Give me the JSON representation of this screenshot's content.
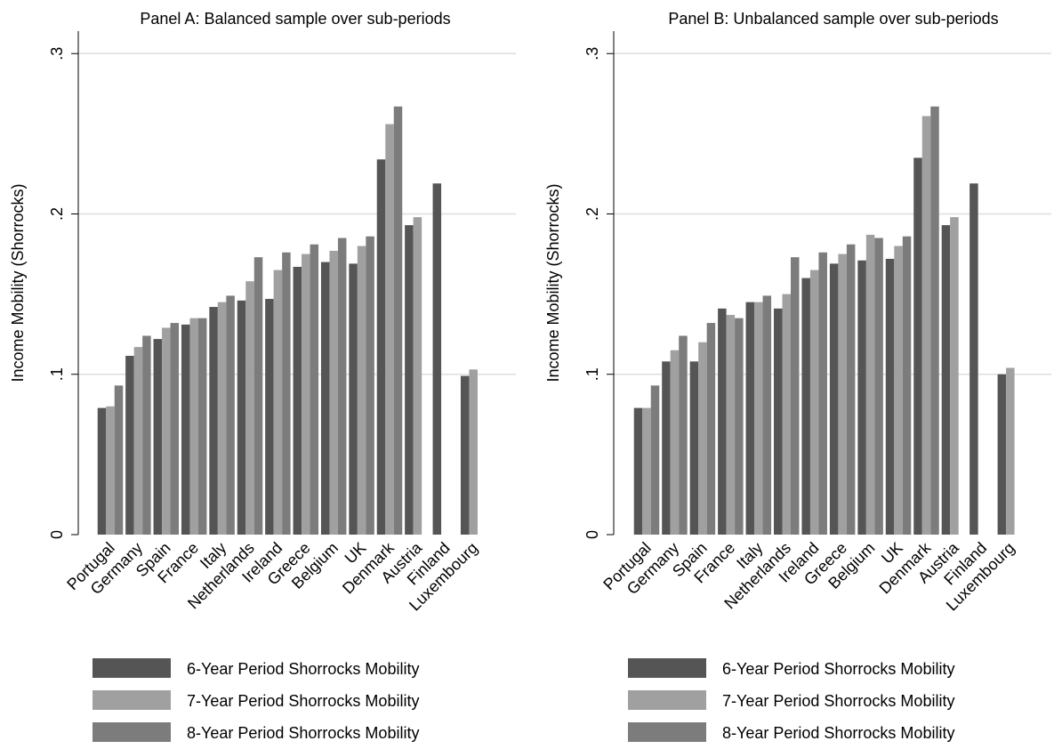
{
  "chart_data": [
    {
      "type": "bar",
      "title": "Panel A: Balanced sample over sub-periods",
      "y_label": "Income Mobility (Shorrocks)",
      "categories": [
        "Portugal",
        "Germany",
        "Spain",
        "France",
        "Italy",
        "Netherlands",
        "Ireland",
        "Greece",
        "Belgium",
        "UK",
        "Denmark",
        "Austria",
        "Finland",
        "Luxembourg"
      ],
      "series": [
        {
          "name": "6-Year Period Shorrocks Mobility",
          "color": "#555555",
          "values": [
            0.079,
            0.1115,
            0.122,
            0.131,
            0.142,
            0.146,
            0.147,
            0.167,
            0.17,
            0.169,
            0.234,
            0.193,
            0.219,
            0.099
          ]
        },
        {
          "name": "7-Year Period Shorrocks Mobility",
          "color": "#a0a0a0",
          "values": [
            0.08,
            0.117,
            0.129,
            0.135,
            0.145,
            0.158,
            0.165,
            0.175,
            0.177,
            0.18,
            0.256,
            0.198,
            null,
            0.103
          ]
        },
        {
          "name": "8-Year Period Shorrocks Mobility",
          "color": "#7c7c7c",
          "values": [
            0.093,
            0.124,
            0.132,
            0.135,
            0.149,
            0.173,
            0.176,
            0.181,
            0.185,
            0.186,
            0.267,
            null,
            null,
            null
          ]
        }
      ],
      "ylim": [
        0,
        0.314
      ],
      "yticks": [
        0,
        {
          "value": 0.1,
          "label": ".1"
        },
        {
          "value": 0.2,
          "label": ".2"
        },
        {
          "value": 0.3,
          "label": ".3"
        }
      ],
      "grid": true
    },
    {
      "type": "bar",
      "title": "Panel B: Unbalanced sample over sub-periods",
      "y_label": "Income Mobility (Shorrocks)",
      "categories": [
        "Portugal",
        "Germany",
        "Spain",
        "France",
        "Italy",
        "Netherlands",
        "Ireland",
        "Greece",
        "Belgium",
        "UK",
        "Denmark",
        "Austria",
        "Finland",
        "Luxembourg"
      ],
      "series": [
        {
          "name": "6-Year Period Shorrocks Mobility",
          "color": "#555555",
          "values": [
            0.079,
            0.108,
            0.108,
            0.141,
            0.145,
            0.141,
            0.16,
            0.169,
            0.171,
            0.172,
            0.235,
            0.193,
            0.219,
            0.1
          ]
        },
        {
          "name": "7-Year Period Shorrocks Mobility",
          "color": "#a0a0a0",
          "values": [
            0.079,
            0.115,
            0.12,
            0.137,
            0.145,
            0.15,
            0.165,
            0.175,
            0.187,
            0.18,
            0.261,
            0.198,
            null,
            0.104
          ]
        },
        {
          "name": "8-Year Period Shorrocks Mobility",
          "color": "#7c7c7c",
          "values": [
            0.093,
            0.124,
            0.132,
            0.135,
            0.149,
            0.173,
            0.176,
            0.181,
            0.185,
            0.186,
            0.267,
            null,
            null,
            null
          ]
        }
      ],
      "ylim": [
        0,
        0.314
      ],
      "yticks": [
        0,
        {
          "value": 0.1,
          "label": ".1"
        },
        {
          "value": 0.2,
          "label": ".2"
        },
        {
          "value": 0.3,
          "label": ".3"
        }
      ],
      "grid": true
    }
  ]
}
